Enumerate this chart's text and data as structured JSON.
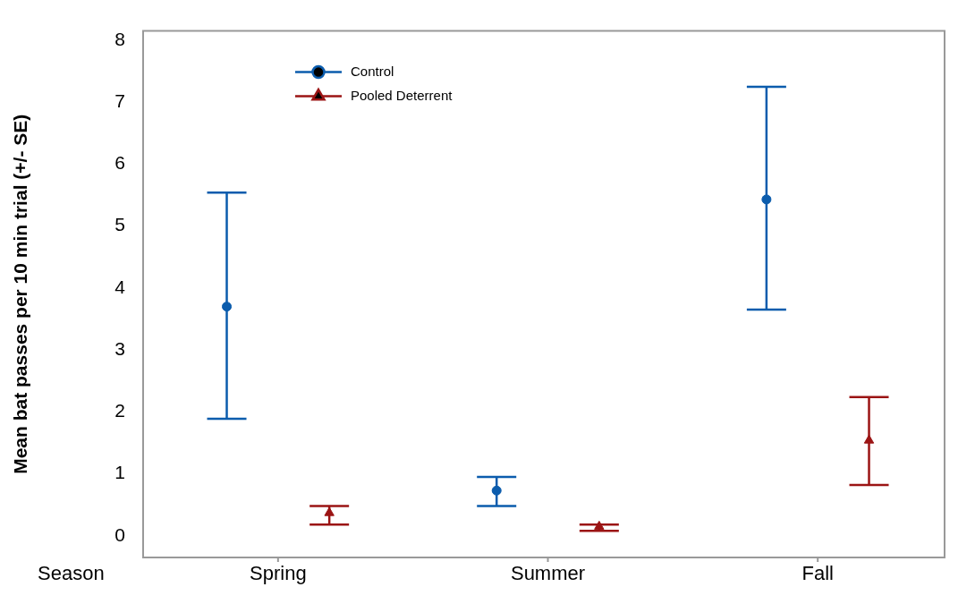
{
  "chart_data": {
    "type": "scatter",
    "xlabel": "Season",
    "ylabel": "Mean bat passes per 10 min trial (+/- SE)",
    "categories": [
      "Spring",
      "Summer",
      "Fall"
    ],
    "ylim": [
      -0.35,
      8.15
    ],
    "yticks": [
      0,
      1,
      2,
      3,
      4,
      5,
      6,
      7,
      8
    ],
    "grid": false,
    "legend": "top left",
    "series": [
      {
        "name": "Control",
        "color": "#0b5cad",
        "marker": "circle",
        "values": [
          3.7,
          0.73,
          5.43
        ],
        "errors": [
          [
            1.89,
            5.54
          ],
          [
            0.48,
            0.95
          ],
          [
            3.65,
            7.25
          ]
        ]
      },
      {
        "name": "Pooled Deterrent",
        "color": "#9b1414",
        "marker": "triangle",
        "values": [
          0.37,
          0.15,
          1.54
        ],
        "errors": [
          [
            0.18,
            0.48
          ],
          [
            0.08,
            0.18
          ],
          [
            0.82,
            2.24
          ]
        ]
      }
    ]
  }
}
